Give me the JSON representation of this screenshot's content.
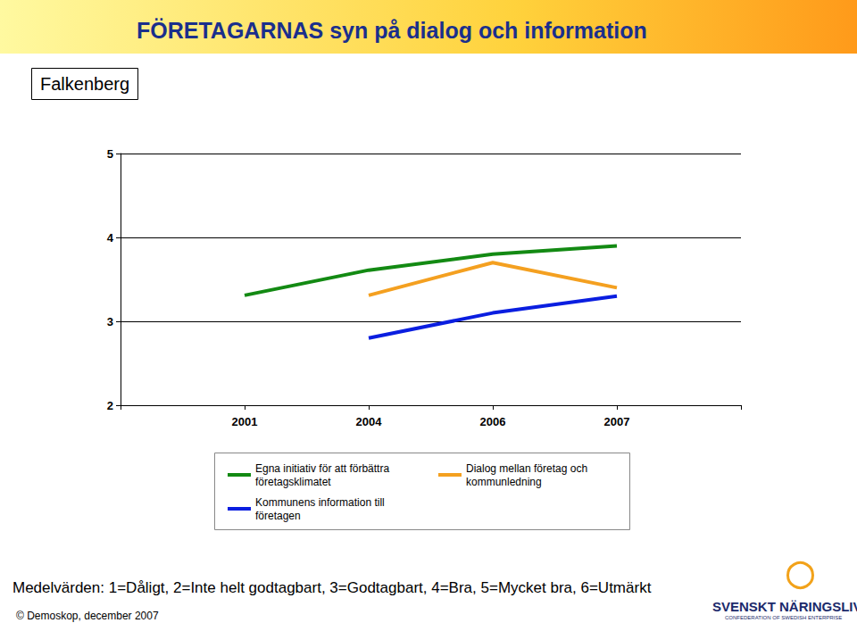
{
  "chart_data": {
    "type": "line",
    "title": "FÖRETAGARNAS syn på dialog och information",
    "subtitle": "Falkenberg",
    "categories": [
      null,
      "2001",
      "2004",
      "2006",
      "2007",
      null
    ],
    "series": [
      {
        "name": "Egna initiativ för att förbättra företagsklimatet",
        "color": "#138a13",
        "values": [
          null,
          3.31,
          3.61,
          3.8,
          3.9,
          null
        ]
      },
      {
        "name": "Kommunens information till företagen",
        "color": "#0a1ee0",
        "values": [
          null,
          null,
          2.8,
          3.1,
          3.3,
          null
        ]
      },
      {
        "name": "Dialog mellan företag och kommunledning",
        "color": "#f4a020",
        "values": [
          null,
          null,
          3.31,
          3.7,
          3.4,
          null
        ]
      }
    ],
    "ylim": [
      2,
      5
    ],
    "yticks": [
      2,
      3,
      4,
      5
    ],
    "grid": true,
    "legend": "bottom",
    "annotations": [
      "Medelvärden: 1=Dåligt, 2=Inte helt godtagbart, 3=Godtagbart, 4=Bra, 5=Mycket bra, 6=Utmärkt",
      "© Demoskop, december 2007",
      "SVENSKT NÄRINGSLIV",
      "CONFEDERATION OF SWEDISH ENTERPRISE"
    ]
  }
}
